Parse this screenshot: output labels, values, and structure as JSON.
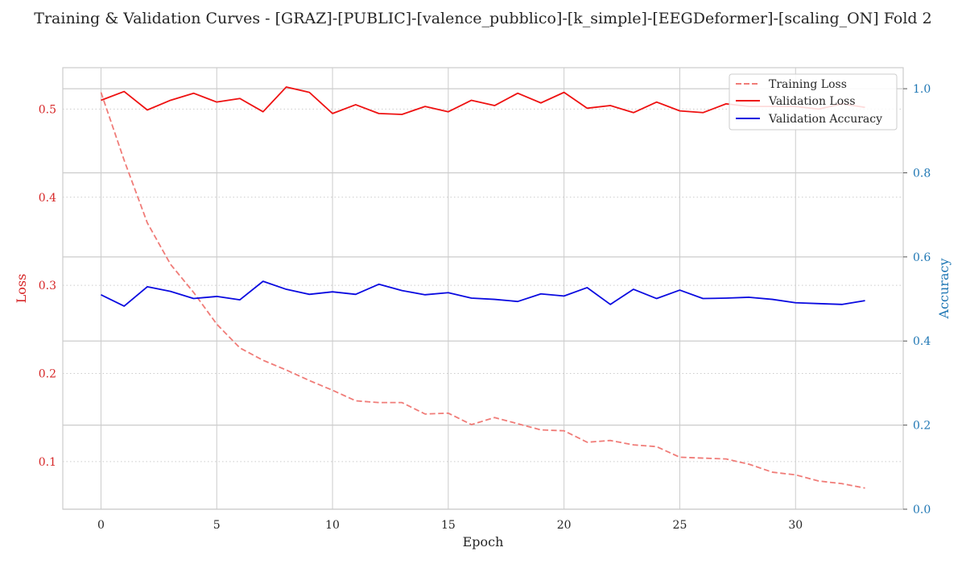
{
  "chart_data": {
    "type": "line",
    "title": "Training & Validation Curves - [GRAZ]-[PUBLIC]-[valence_pubblico]-[k_simple]-[EEGDeformer]-[scaling_ON] Fold 2",
    "xlabel": "Epoch",
    "ylabel_left": "Loss",
    "ylabel_right": "Accuracy",
    "xlim": [
      -1.65,
      34.65
    ],
    "ylim_left": [
      0.046,
      0.547
    ],
    "ylim_right": [
      0.0,
      1.05
    ],
    "x_ticks": [
      0,
      5,
      10,
      15,
      20,
      25,
      30
    ],
    "y_ticks_left": [
      0.1,
      0.2,
      0.3,
      0.4,
      0.5
    ],
    "y_ticks_right": [
      0.0,
      0.2,
      0.4,
      0.6,
      0.8,
      1.0
    ],
    "x_tick_labels": [
      "0",
      "5",
      "10",
      "15",
      "20",
      "25",
      "30"
    ],
    "y_tick_labels_left": [
      "0.1",
      "0.2",
      "0.3",
      "0.4",
      "0.5"
    ],
    "y_tick_labels_right": [
      "0.0",
      "0.2",
      "0.4",
      "0.6",
      "0.8",
      "1.0"
    ],
    "grid": true,
    "legend_position": "top-right",
    "colors": {
      "training_loss": "#f07c78",
      "validation_loss": "#ee1111",
      "validation_accuracy": "#0a0ae0",
      "left_axis": "#d62728",
      "right_axis": "#1f77b4",
      "grid": "#cccccc"
    },
    "x": [
      0,
      1,
      2,
      3,
      4,
      5,
      6,
      7,
      8,
      9,
      10,
      11,
      12,
      13,
      14,
      15,
      16,
      17,
      18,
      19,
      20,
      21,
      22,
      23,
      24,
      25,
      26,
      27,
      28,
      29,
      30,
      31,
      32,
      33
    ],
    "series": [
      {
        "name": "Training Loss",
        "axis": "left",
        "style": "dashed",
        "values": [
          0.519,
          0.442,
          0.371,
          0.324,
          0.292,
          0.256,
          0.229,
          0.215,
          0.204,
          0.192,
          0.181,
          0.169,
          0.167,
          0.167,
          0.154,
          0.155,
          0.142,
          0.15,
          0.143,
          0.136,
          0.135,
          0.122,
          0.124,
          0.119,
          0.117,
          0.105,
          0.104,
          0.103,
          0.097,
          0.088,
          0.085,
          0.078,
          0.075,
          0.07
        ]
      },
      {
        "name": "Validation Loss",
        "axis": "left",
        "style": "solid",
        "values": [
          0.51,
          0.52,
          0.499,
          0.51,
          0.518,
          0.508,
          0.512,
          0.497,
          0.525,
          0.519,
          0.495,
          0.505,
          0.495,
          0.494,
          0.503,
          0.497,
          0.51,
          0.504,
          0.518,
          0.507,
          0.519,
          0.501,
          0.504,
          0.496,
          0.508,
          0.498,
          0.496,
          0.506,
          0.503,
          0.503,
          0.503,
          0.5,
          0.506,
          0.502
        ]
      },
      {
        "name": "Validation Accuracy",
        "axis": "right",
        "style": "solid",
        "values": [
          0.51,
          0.483,
          0.529,
          0.518,
          0.501,
          0.506,
          0.498,
          0.542,
          0.523,
          0.511,
          0.517,
          0.511,
          0.535,
          0.52,
          0.51,
          0.515,
          0.502,
          0.499,
          0.494,
          0.512,
          0.507,
          0.527,
          0.487,
          0.523,
          0.501,
          0.521,
          0.501,
          0.502,
          0.504,
          0.499,
          0.491,
          0.489,
          0.487,
          0.496
        ]
      }
    ]
  }
}
